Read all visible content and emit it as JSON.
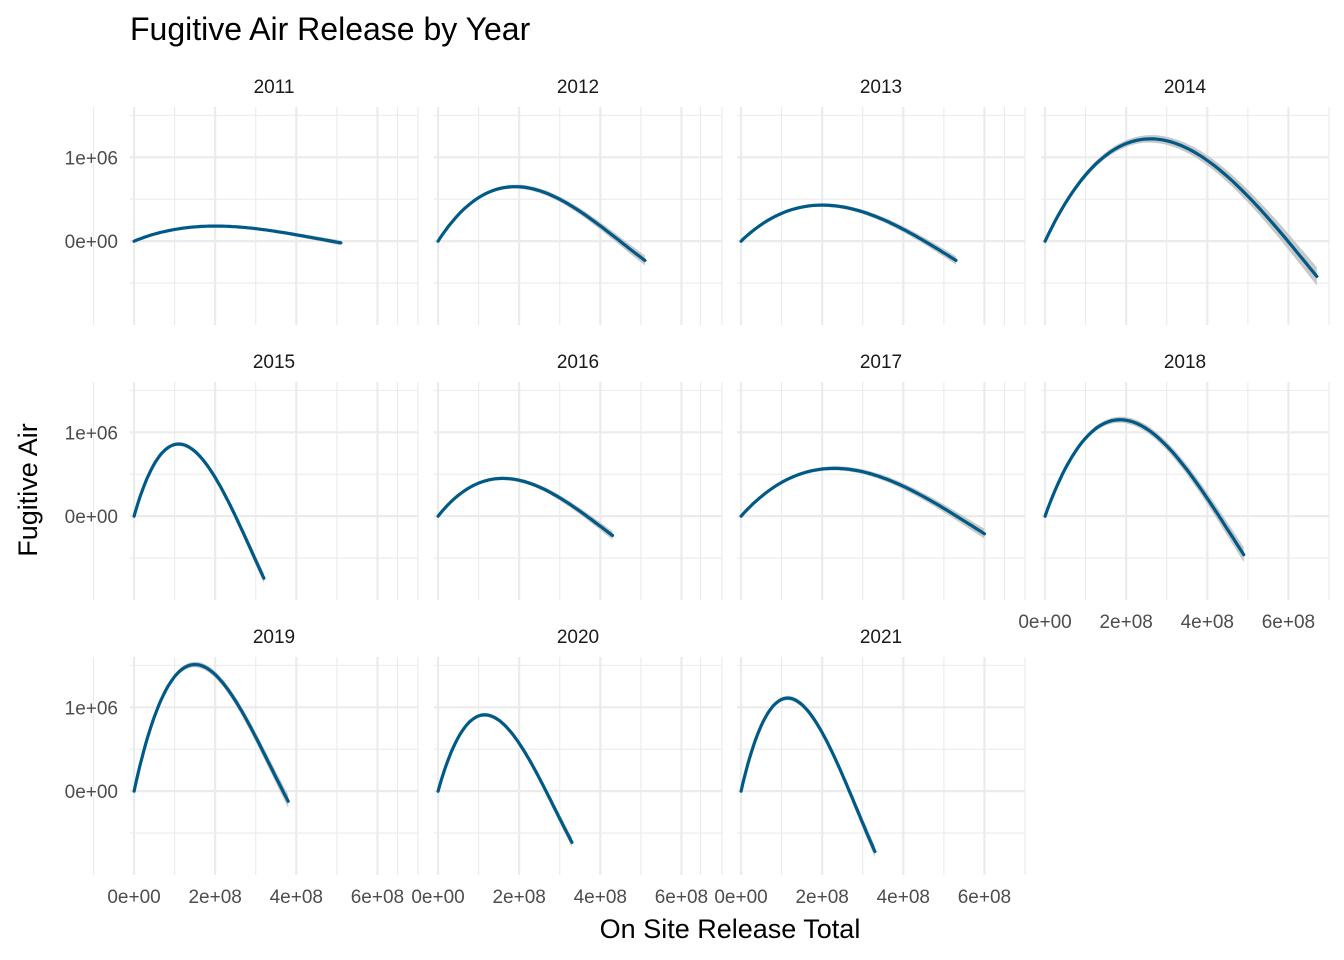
{
  "chart_data": {
    "type": "line",
    "title": "Fugitive Air Release by Year",
    "xlabel": "On Site Release Total",
    "ylabel": "Fugitive Air",
    "xlim": [
      -10000000,
      700000000
    ],
    "ylim": [
      -1000000,
      1600000
    ],
    "x_ticks": [
      0,
      200000000,
      400000000,
      600000000
    ],
    "x_tick_labels": [
      "0e+00",
      "2e+08",
      "4e+08",
      "6e+08"
    ],
    "y_ticks": [
      0,
      1000000
    ],
    "y_tick_labels": [
      "0e+00",
      "1e+06"
    ],
    "grid": true,
    "line_color": "#005a87",
    "band_color": "#c8c8c8",
    "layout": "facet_wrap, 4 columns, 3 rows",
    "panels": [
      {
        "label": "2011",
        "xmax": 510000000,
        "peak_x": 200000000,
        "peak_y": 180000,
        "end_y": -20000,
        "se": 15000
      },
      {
        "label": "2012",
        "xmax": 510000000,
        "peak_x": 190000000,
        "peak_y": 650000,
        "end_y": -230000,
        "se": 30000
      },
      {
        "label": "2013",
        "xmax": 530000000,
        "peak_x": 200000000,
        "peak_y": 430000,
        "end_y": -230000,
        "se": 25000
      },
      {
        "label": "2014",
        "xmax": 670000000,
        "peak_x": 260000000,
        "peak_y": 1220000,
        "end_y": -420000,
        "se": 55000
      },
      {
        "label": "2015",
        "xmax": 320000000,
        "peak_x": 110000000,
        "peak_y": 860000,
        "end_y": -740000,
        "se": 30000
      },
      {
        "label": "2016",
        "xmax": 430000000,
        "peak_x": 160000000,
        "peak_y": 450000,
        "end_y": -230000,
        "se": 25000
      },
      {
        "label": "2017",
        "xmax": 600000000,
        "peak_x": 230000000,
        "peak_y": 570000,
        "end_y": -210000,
        "se": 30000
      },
      {
        "label": "2018",
        "xmax": 490000000,
        "peak_x": 185000000,
        "peak_y": 1150000,
        "end_y": -460000,
        "se": 45000
      },
      {
        "label": "2019",
        "xmax": 380000000,
        "peak_x": 150000000,
        "peak_y": 1510000,
        "end_y": -120000,
        "se": 40000
      },
      {
        "label": "2020",
        "xmax": 330000000,
        "peak_x": 115000000,
        "peak_y": 910000,
        "end_y": -610000,
        "se": 30000
      },
      {
        "label": "2021",
        "xmax": 330000000,
        "peak_x": 115000000,
        "peak_y": 1110000,
        "end_y": -720000,
        "se": 35000
      }
    ]
  }
}
